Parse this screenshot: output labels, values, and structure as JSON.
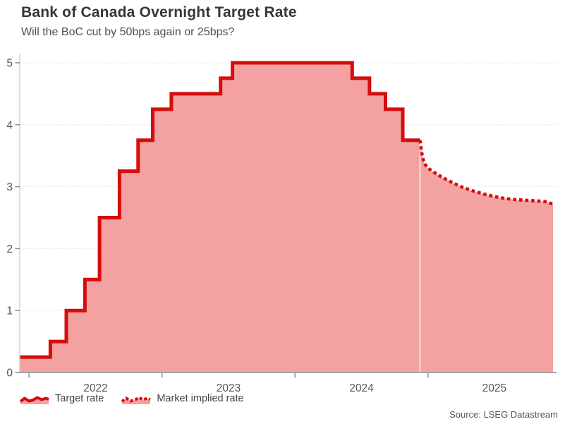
{
  "header": {
    "title": "Bank of Canada Overnight Target Rate",
    "subtitle": "Will the BoC cut by 50bps again or 25bps?"
  },
  "chart_data": {
    "type": "line",
    "subtype": "step-area-with-dotted-forecast",
    "title": "Bank of Canada Overnight Target Rate",
    "subtitle": "Will the BoC cut by 50bps again or 25bps?",
    "xlabel": "",
    "ylabel": "",
    "ylim": [
      0,
      5.2
    ],
    "yticks": [
      0,
      1,
      2,
      3,
      4,
      5
    ],
    "x_domain_years": [
      2021.93,
      2025.94
    ],
    "xticks_years": [
      2022,
      2023,
      2024,
      2025
    ],
    "grid": "dotted-horizontal",
    "legend_position": "bottom-left",
    "forecast_boundary_year": 2024.94,
    "series": [
      {
        "name": "Target rate",
        "style": "solid-step",
        "points": [
          [
            2021.93,
            0.25
          ],
          [
            2022.16,
            0.5
          ],
          [
            2022.28,
            1.0
          ],
          [
            2022.42,
            1.5
          ],
          [
            2022.53,
            2.5
          ],
          [
            2022.68,
            3.25
          ],
          [
            2022.82,
            3.75
          ],
          [
            2022.93,
            4.25
          ],
          [
            2023.07,
            4.5
          ],
          [
            2023.44,
            4.75
          ],
          [
            2023.53,
            5.0
          ],
          [
            2024.43,
            4.75
          ],
          [
            2024.56,
            4.5
          ],
          [
            2024.68,
            4.25
          ],
          [
            2024.81,
            3.75
          ],
          [
            2024.94,
            3.75
          ]
        ]
      },
      {
        "name": "Market implied rate",
        "style": "dotted",
        "points": [
          [
            2024.94,
            3.75
          ],
          [
            2024.955,
            3.52
          ],
          [
            2024.97,
            3.38
          ],
          [
            2025.0,
            3.3
          ],
          [
            2025.04,
            3.24
          ],
          [
            2025.1,
            3.16
          ],
          [
            2025.18,
            3.07
          ],
          [
            2025.26,
            2.99
          ],
          [
            2025.34,
            2.93
          ],
          [
            2025.42,
            2.88
          ],
          [
            2025.5,
            2.84
          ],
          [
            2025.58,
            2.81
          ],
          [
            2025.66,
            2.79
          ],
          [
            2025.74,
            2.78
          ],
          [
            2025.82,
            2.77
          ],
          [
            2025.88,
            2.76
          ],
          [
            2025.94,
            2.72
          ]
        ]
      }
    ]
  },
  "legend": {
    "items": [
      {
        "label": "Target rate",
        "style": "solid"
      },
      {
        "label": "Market implied rate",
        "style": "dotted"
      }
    ]
  },
  "source": "Source: LSEG Datastream",
  "colors": {
    "line": "#d40d0d",
    "fill": "#f4a1a1",
    "grid": "#dedede",
    "axis_left": "#cbcbcb",
    "axis_bottom": "#a3a3a3",
    "tick": "#8c8c8c",
    "tick_label": "#555555",
    "title": "#363636",
    "subtitle": "#4f4f4f",
    "source": "#565656",
    "forecast_divider": "#ffffff"
  }
}
